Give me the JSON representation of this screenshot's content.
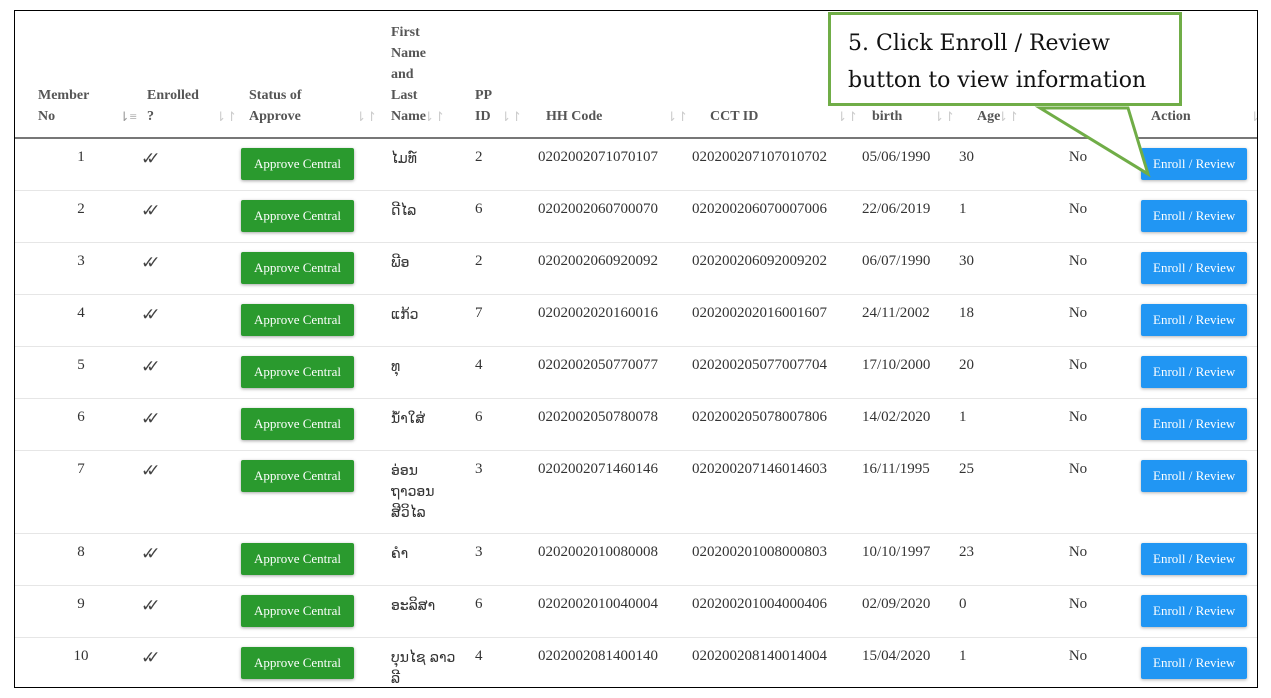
{
  "table": {
    "headers": [
      {
        "label": "Member No",
        "sort": "active"
      },
      {
        "label": "Enrolled ?",
        "sort": "inactive"
      },
      {
        "label": "Status of Approve",
        "sort": "inactive"
      },
      {
        "label": "First Name and Last Name",
        "sort": "inactive"
      },
      {
        "label": "PP ID",
        "sort": "inactive"
      },
      {
        "label": "HH Code",
        "sort": "inactive"
      },
      {
        "label": "CCT ID",
        "sort": "inactive"
      },
      {
        "label": "birth",
        "sort": "inactive"
      },
      {
        "label": "Age",
        "sort": "inactive"
      },
      {
        "label": "",
        "sort": "none"
      },
      {
        "label": "Action",
        "sort": "inactive"
      }
    ],
    "rows": [
      {
        "no": "1",
        "enrolled": "✓✓",
        "status": "Approve Central",
        "name": "ໄມທ໌",
        "pp": "2",
        "hh": "0202002071070107",
        "cct": "020200207107010702",
        "birth": "05/06/1990",
        "age": "30",
        "flag": "No",
        "action": "Enroll / Review"
      },
      {
        "no": "2",
        "enrolled": "✓✓",
        "status": "Approve Central",
        "name": "ດີໄລ",
        "pp": "6",
        "hh": "0202002060700070",
        "cct": "020200206070007006",
        "birth": "22/06/2019",
        "age": "1",
        "flag": "No",
        "action": "Enroll / Review"
      },
      {
        "no": "3",
        "enrolled": "✓✓",
        "status": "Approve Central",
        "name": "ພີອ",
        "pp": "2",
        "hh": "0202002060920092",
        "cct": "020200206092009202",
        "birth": "06/07/1990",
        "age": "30",
        "flag": "No",
        "action": "Enroll / Review"
      },
      {
        "no": "4",
        "enrolled": "✓✓",
        "status": "Approve Central",
        "name": "ແກ້ວ",
        "pp": "7",
        "hh": "0202002020160016",
        "cct": "020200202016001607",
        "birth": "24/11/2002",
        "age": "18",
        "flag": "No",
        "action": "Enroll / Review"
      },
      {
        "no": "5",
        "enrolled": "✓✓",
        "status": "Approve Central",
        "name": "ທຸ",
        "pp": "4",
        "hh": "0202002050770077",
        "cct": "020200205077007704",
        "birth": "17/10/2000",
        "age": "20",
        "flag": "No",
        "action": "Enroll / Review"
      },
      {
        "no": "6",
        "enrolled": "✓✓",
        "status": "Approve Central",
        "name": "ນ້ຳໃສ່",
        "pp": "6",
        "hh": "0202002050780078",
        "cct": "020200205078007806",
        "birth": "14/02/2020",
        "age": "1",
        "flag": "No",
        "action": "Enroll / Review"
      },
      {
        "no": "7",
        "enrolled": "✓✓",
        "status": "Approve Central",
        "name": "ອ່ອນ ຖາວອນສີວິໄລ",
        "pp": "3",
        "hh": "0202002071460146",
        "cct": "020200207146014603",
        "birth": "16/11/1995",
        "age": "25",
        "flag": "No",
        "action": "Enroll / Review"
      },
      {
        "no": "8",
        "enrolled": "✓✓",
        "status": "Approve Central",
        "name": "ຄຳ",
        "pp": "3",
        "hh": "0202002010080008",
        "cct": "020200201008000803",
        "birth": "10/10/1997",
        "age": "23",
        "flag": "No",
        "action": "Enroll / Review"
      },
      {
        "no": "9",
        "enrolled": "✓✓",
        "status": "Approve Central",
        "name": "ອະລິສາ",
        "pp": "6",
        "hh": "0202002010040004",
        "cct": "020200201004000406",
        "birth": "02/09/2020",
        "age": "0",
        "flag": "No",
        "action": "Enroll / Review"
      },
      {
        "no": "10",
        "enrolled": "✓✓",
        "status": "Approve Central",
        "name": "ບຸນໄຊ ລາວລີ",
        "pp": "4",
        "hh": "0202002081400140",
        "cct": "020200208140014004",
        "birth": "15/04/2020",
        "age": "1",
        "flag": "No",
        "action": "Enroll / Review"
      }
    ]
  },
  "callout": {
    "text": "5. Click Enroll / Review button to view information",
    "color": "#70ad47"
  },
  "colors": {
    "approve": "#2a9a2e",
    "enroll": "#2196f3"
  }
}
